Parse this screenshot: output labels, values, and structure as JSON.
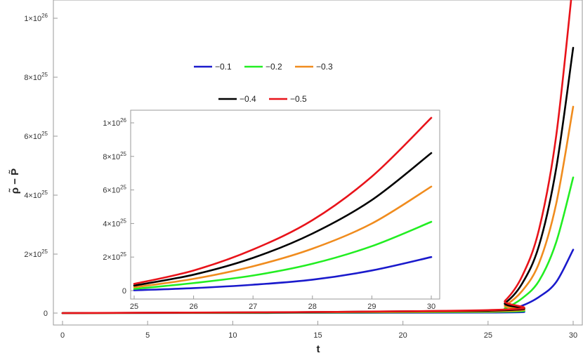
{
  "chart_data": {
    "type": "line",
    "x_label": "t",
    "y_label": "ρ̃ − P̃",
    "main": {
      "xlim": [
        0,
        30
      ],
      "ylim": [
        0,
        1.05e+26
      ],
      "x_ticks": [
        {
          "v": 0,
          "label": "0"
        },
        {
          "v": 5,
          "label": "5"
        },
        {
          "v": 10,
          "label": "10"
        },
        {
          "v": 15,
          "label": "15"
        },
        {
          "v": 20,
          "label": "20"
        },
        {
          "v": 25,
          "label": "25"
        },
        {
          "v": 30,
          "label": "30"
        }
      ],
      "y_ticks": [
        {
          "v": 0,
          "label": "0"
        },
        {
          "v": 2e+25,
          "label": "2×10",
          "exp": "25"
        },
        {
          "v": 4e+25,
          "label": "4×10",
          "exp": "25"
        },
        {
          "v": 6e+25,
          "label": "6×10",
          "exp": "25"
        },
        {
          "v": 8e+25,
          "label": "8×10",
          "exp": "25"
        },
        {
          "v": 1e+26,
          "label": "1×10",
          "exp": "26"
        }
      ]
    },
    "inset": {
      "xlim": [
        25,
        30
      ],
      "ylim": [
        -3e+24,
        1.08e+26
      ],
      "x_ticks": [
        {
          "v": 25,
          "label": "25"
        },
        {
          "v": 26,
          "label": "26"
        },
        {
          "v": 27,
          "label": "27"
        },
        {
          "v": 28,
          "label": "28"
        },
        {
          "v": 29,
          "label": "29"
        },
        {
          "v": 30,
          "label": "30"
        }
      ],
      "y_ticks": [
        {
          "v": 0,
          "label": "0"
        },
        {
          "v": 2e+25,
          "label": "2×10",
          "exp": "25"
        },
        {
          "v": 4e+25,
          "label": "4×10",
          "exp": "25"
        },
        {
          "v": 6e+25,
          "label": "6×10",
          "exp": "25"
        },
        {
          "v": 8e+25,
          "label": "8×10",
          "exp": "25"
        },
        {
          "v": 1e+26,
          "label": "1×10",
          "exp": "26"
        }
      ]
    },
    "series": [
      {
        "name": "−0.1",
        "color": "#1a1acc",
        "main": [
          [
            0,
            0
          ],
          [
            25,
            2e+23
          ],
          [
            26,
            9e+23
          ],
          [
            27,
            2.5e+24
          ],
          [
            28,
            5.5e+24
          ],
          [
            29,
            1.05e+25
          ],
          [
            30,
            2.15e+25
          ]
        ],
        "inset": [
          [
            25,
            2e+23
          ],
          [
            26,
            1.5e+24
          ],
          [
            27,
            3.5e+24
          ],
          [
            28,
            6.5e+24
          ],
          [
            29,
            1.2e+25
          ],
          [
            30,
            2e+25
          ]
        ]
      },
      {
        "name": "−0.2",
        "color": "#22ee22",
        "main": [
          [
            0,
            0
          ],
          [
            25,
            4e+23
          ],
          [
            26,
            1.7e+24
          ],
          [
            27,
            5e+24
          ],
          [
            28,
            1.1e+25
          ],
          [
            29,
            2.4e+25
          ],
          [
            30,
            4.6e+25
          ]
        ],
        "inset": [
          [
            25,
            1e+24
          ],
          [
            26,
            4.5e+24
          ],
          [
            27,
            9e+24
          ],
          [
            28,
            1.6e+25
          ],
          [
            29,
            2.65e+25
          ],
          [
            30,
            4.1e+25
          ]
        ]
      },
      {
        "name": "−0.3",
        "color": "#f08c1e",
        "main": [
          [
            0,
            0
          ],
          [
            25,
            6e+23
          ],
          [
            26,
            2.6e+24
          ],
          [
            27,
            7.5e+24
          ],
          [
            28,
            1.7e+25
          ],
          [
            29,
            3.7e+25
          ],
          [
            30,
            7e+25
          ]
        ],
        "inset": [
          [
            25,
            2e+24
          ],
          [
            26,
            7e+24
          ],
          [
            27,
            1.45e+25
          ],
          [
            28,
            2.5e+25
          ],
          [
            29,
            4e+25
          ],
          [
            30,
            6.2e+25
          ]
        ]
      },
      {
        "name": "−0.4",
        "color": "#000000",
        "main": [
          [
            0,
            0
          ],
          [
            25,
            8e+23
          ],
          [
            26,
            3.4e+24
          ],
          [
            27,
            1e+25
          ],
          [
            28,
            2.3e+25
          ],
          [
            29,
            4.9e+25
          ],
          [
            30,
            9e+25
          ]
        ],
        "inset": [
          [
            25,
            3e+24
          ],
          [
            26,
            9.5e+24
          ],
          [
            27,
            1.95e+25
          ],
          [
            28,
            3.4e+25
          ],
          [
            29,
            5.4e+25
          ],
          [
            30,
            8.2e+25
          ]
        ]
      },
      {
        "name": "−0.5",
        "color": "#e8131a",
        "main": [
          [
            0,
            0
          ],
          [
            25,
            1e+24
          ],
          [
            26,
            4.2e+24
          ],
          [
            27,
            1.25e+25
          ],
          [
            28,
            2.85e+25
          ],
          [
            29,
            6e+25
          ],
          [
            30,
            1.13e+26
          ]
        ],
        "inset": [
          [
            25,
            4e+24
          ],
          [
            26,
            1.2e+25
          ],
          [
            27,
            2.45e+25
          ],
          [
            28,
            4.2e+25
          ],
          [
            29,
            6.8e+25
          ],
          [
            30,
            1.03e+26
          ]
        ]
      }
    ],
    "legend_rows": [
      [
        0,
        1,
        2
      ],
      [
        3,
        4
      ]
    ],
    "grid": false
  }
}
